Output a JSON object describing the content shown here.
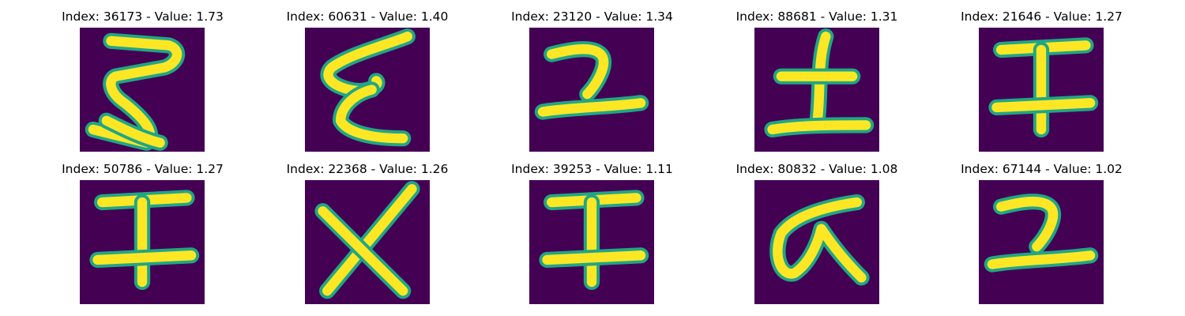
{
  "chart_data": {
    "type": "image-grid",
    "rows": 2,
    "cols": 5,
    "colormap": "viridis",
    "colors": {
      "background": "#440154",
      "edge": "#21a685",
      "stroke": "#fde725"
    },
    "panels": [
      {
        "title": "Index: 36173 - Value: 1.73",
        "index": 36173,
        "value": 1.73,
        "glyph": "zigzag-3"
      },
      {
        "title": "Index: 60631 - Value: 1.40",
        "index": 60631,
        "value": 1.4,
        "glyph": "zigzag-e"
      },
      {
        "title": "Index: 23120 - Value: 1.34",
        "index": 23120,
        "value": 1.34,
        "glyph": "ko-hook"
      },
      {
        "title": "Index: 88681 - Value: 1.31",
        "index": 88681,
        "value": 1.31,
        "glyph": "tsuchi"
      },
      {
        "title": "Index: 21646 - Value: 1.27",
        "index": 21646,
        "value": 1.27,
        "glyph": "i-beam"
      },
      {
        "title": "Index: 50786 - Value: 1.27",
        "index": 50786,
        "value": 1.27,
        "glyph": "i-beam"
      },
      {
        "title": "Index: 22368 - Value: 1.26",
        "index": 22368,
        "value": 1.26,
        "glyph": "x-cross"
      },
      {
        "title": "Index: 39253 - Value: 1.11",
        "index": 39253,
        "value": 1.11,
        "glyph": "i-beam"
      },
      {
        "title": "Index: 80832 - Value: 1.08",
        "index": 80832,
        "value": 1.08,
        "glyph": "alpha"
      },
      {
        "title": "Index: 67144 - Value: 1.02",
        "index": 67144,
        "value": 1.02,
        "glyph": "ko-hook"
      }
    ]
  }
}
